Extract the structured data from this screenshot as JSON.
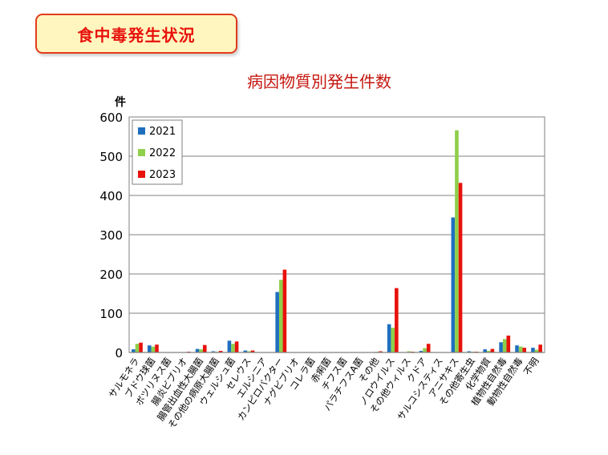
{
  "banner": {
    "title": "食中毒発生状況"
  },
  "chart_data": {
    "type": "bar",
    "title": "病因物質別発生件数",
    "ylabel": "件",
    "ylim": [
      0,
      600
    ],
    "yticks": [
      0,
      100,
      200,
      300,
      400,
      500,
      600
    ],
    "grid": true,
    "legend_position": "top-left",
    "categories": [
      "サルモネラ",
      "ブドウ球菌",
      "ボツリヌス菌",
      "腸炎ビブリオ",
      "腸管出血性大腸菌",
      "その他の病原大腸菌",
      "ウェルシュ菌",
      "セレウス",
      "エルシニア",
      "カンピロバクター",
      "ナグビブリオ",
      "コレラ菌",
      "赤痢菌",
      "チフス菌",
      "パラチフスA菌",
      "その他",
      "ノロウイルス",
      "その他ウィルス",
      "クドア",
      "サルコシスティス",
      "アニサキス",
      "その他寄生虫",
      "化学物質",
      "植物性自然毒",
      "動物性自然毒",
      "不明"
    ],
    "series": [
      {
        "name": "2021",
        "color": "#1f6fbf",
        "values": [
          8,
          18,
          0,
          1,
          9,
          3,
          30,
          5,
          0,
          154,
          0,
          0,
          0,
          0,
          0,
          1,
          72,
          1,
          4,
          0,
          344,
          3,
          8,
          26,
          18,
          12
        ]
      },
      {
        "name": "2022",
        "color": "#8fcf4a",
        "values": [
          22,
          15,
          1,
          0,
          8,
          2,
          22,
          3,
          0,
          185,
          0,
          0,
          0,
          0,
          0,
          2,
          63,
          3,
          11,
          0,
          566,
          2,
          4,
          34,
          15,
          7
        ]
      },
      {
        "name": "2023",
        "color": "#e8120c",
        "values": [
          25,
          20,
          0,
          2,
          19,
          4,
          28,
          5,
          0,
          211,
          0,
          0,
          0,
          0,
          0,
          3,
          164,
          2,
          22,
          0,
          432,
          2,
          9,
          43,
          12,
          20
        ]
      }
    ]
  }
}
